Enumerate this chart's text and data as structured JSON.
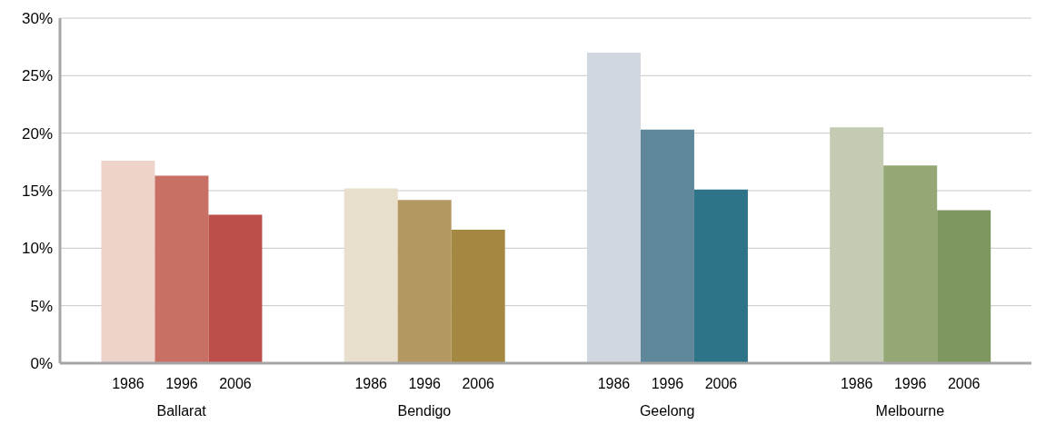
{
  "chart_data": {
    "type": "bar",
    "categories": [
      "Ballarat",
      "Bendigo",
      "Geelong",
      "Melbourne"
    ],
    "series": [
      {
        "name": "1986",
        "colors": [
          "#edd3ca",
          "#e8dfcc",
          "#d0d7de",
          "#c4cbb3"
        ],
        "values": [
          17.6,
          15.2,
          27.0,
          20.5
        ]
      },
      {
        "name": "1996",
        "colors": [
          "#c87064",
          "#b49862",
          "#5e8799",
          "#94a775"
        ],
        "values": [
          16.3,
          14.2,
          20.3,
          17.2
        ]
      },
      {
        "name": "2006",
        "colors": [
          "#bd4f4a",
          "#a48841",
          "#2e7489",
          "#7e975e"
        ],
        "values": [
          12.9,
          11.6,
          15.1,
          13.3
        ]
      }
    ],
    "ylim": [
      0,
      30
    ],
    "yticks": [
      {
        "value": 0,
        "label": "0%"
      },
      {
        "value": 5,
        "label": "5%"
      },
      {
        "value": 10,
        "label": "10%"
      },
      {
        "value": 15,
        "label": "15%"
      },
      {
        "value": 20,
        "label": "20%"
      },
      {
        "value": 25,
        "label": "25%"
      },
      {
        "value": 30,
        "label": "30%"
      }
    ],
    "grid": "y"
  }
}
